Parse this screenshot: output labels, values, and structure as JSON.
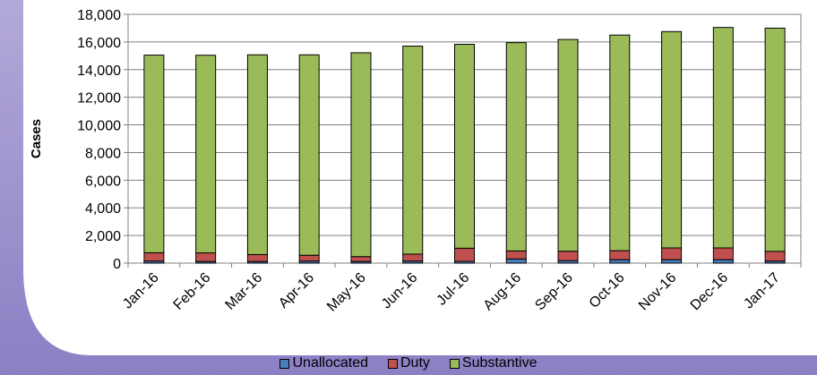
{
  "chart_data": {
    "type": "bar",
    "stacked": true,
    "ylabel": "Cases",
    "xlabel": "",
    "ylim": [
      0,
      18000
    ],
    "yticks": [
      0,
      2000,
      4000,
      6000,
      8000,
      10000,
      12000,
      14000,
      16000,
      18000
    ],
    "ytick_labels": [
      "0",
      "2,000",
      "4,000",
      "6,000",
      "8,000",
      "10,000",
      "12,000",
      "14,000",
      "16,000",
      "18,000"
    ],
    "grid": true,
    "legend_position": "bottom",
    "categories": [
      "Jan-16",
      "Feb-16",
      "Mar-16",
      "Apr-16",
      "May-16",
      "Jun-16",
      "Jul-16",
      "Aug-16",
      "Sep-16",
      "Oct-16",
      "Nov-16",
      "Dec-16",
      "Jan-17"
    ],
    "series": [
      {
        "name": "Unallocated",
        "color": "#4a7ebb",
        "values": [
          150,
          120,
          120,
          150,
          120,
          150,
          130,
          300,
          180,
          250,
          250,
          250,
          150
        ]
      },
      {
        "name": "Duty",
        "color": "#c0504d",
        "values": [
          600,
          620,
          500,
          420,
          350,
          500,
          950,
          580,
          680,
          650,
          850,
          850,
          700
        ]
      },
      {
        "name": "Substantive",
        "color": "#9bbb59",
        "values": [
          14300,
          14300,
          14450,
          14500,
          14750,
          15050,
          14750,
          15070,
          15320,
          15600,
          15650,
          15950,
          16150
        ]
      }
    ]
  }
}
